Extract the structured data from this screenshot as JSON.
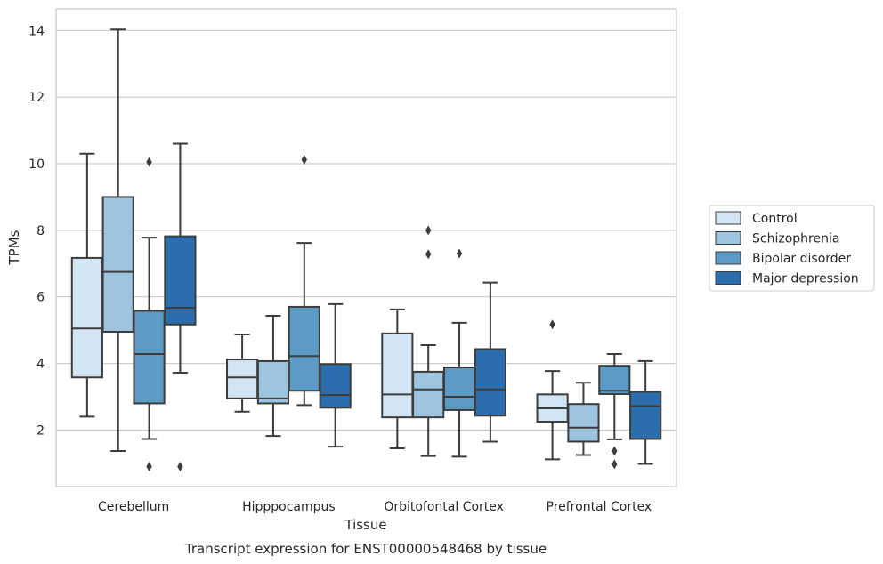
{
  "chart_data": {
    "type": "boxplot",
    "title": "Transcript expression for ENST00000548468 by tissue",
    "xlabel": "Tissue",
    "ylabel": "TPMs",
    "ylim": [
      0.3,
      14.65
    ],
    "yticks": [
      2,
      4,
      6,
      8,
      10,
      12,
      14
    ],
    "grid": true,
    "legend_position": "right-outside",
    "categories": [
      "Cerebellum",
      "Hipppocampus",
      "Orbitofontal Cortex",
      "Prefrontal Cortex"
    ],
    "series": [
      {
        "name": "Control",
        "color": "#d3e4f3",
        "boxes": [
          {
            "whislo": 2.4,
            "q1": 3.58,
            "med": 5.05,
            "q3": 7.17,
            "whishi": 10.3,
            "fliers": []
          },
          {
            "whislo": 2.55,
            "q1": 2.95,
            "med": 3.58,
            "q3": 4.12,
            "whishi": 4.87,
            "fliers": []
          },
          {
            "whislo": 1.45,
            "q1": 2.38,
            "med": 3.07,
            "q3": 4.9,
            "whishi": 5.62,
            "fliers": []
          },
          {
            "whislo": 1.12,
            "q1": 2.25,
            "med": 2.65,
            "q3": 3.07,
            "whishi": 3.77,
            "fliers": [
              5.17
            ]
          }
        ]
      },
      {
        "name": "Schizophrenia",
        "color": "#9cc4df",
        "boxes": [
          {
            "whislo": 1.37,
            "q1": 4.95,
            "med": 6.75,
            "q3": 9.0,
            "whishi": 14.03,
            "fliers": []
          },
          {
            "whislo": 1.82,
            "q1": 2.8,
            "med": 2.95,
            "q3": 4.07,
            "whishi": 5.43,
            "fliers": []
          },
          {
            "whislo": 1.22,
            "q1": 2.38,
            "med": 3.22,
            "q3": 3.75,
            "whishi": 4.55,
            "fliers": [
              7.28,
              8.0
            ]
          },
          {
            "whislo": 1.25,
            "q1": 1.65,
            "med": 2.07,
            "q3": 2.78,
            "whishi": 3.42,
            "fliers": []
          }
        ]
      },
      {
        "name": "Bipolar disorder",
        "color": "#5b9bc6",
        "boxes": [
          {
            "whislo": 1.73,
            "q1": 2.8,
            "med": 4.28,
            "q3": 5.58,
            "whishi": 7.78,
            "fliers": [
              10.05,
              0.9
            ]
          },
          {
            "whislo": 2.75,
            "q1": 3.18,
            "med": 4.22,
            "q3": 5.7,
            "whishi": 7.62,
            "fliers": [
              10.12
            ]
          },
          {
            "whislo": 1.2,
            "q1": 2.6,
            "med": 3.0,
            "q3": 3.88,
            "whishi": 5.22,
            "fliers": [
              7.3
            ]
          },
          {
            "whislo": 1.72,
            "q1": 3.08,
            "med": 3.18,
            "q3": 3.93,
            "whishi": 4.28,
            "fliers": [
              1.37,
              0.97
            ]
          }
        ]
      },
      {
        "name": "Major depression",
        "color": "#2c6ead",
        "boxes": [
          {
            "whislo": 3.72,
            "q1": 5.17,
            "med": 5.67,
            "q3": 7.82,
            "whishi": 10.6,
            "fliers": [
              0.9
            ]
          },
          {
            "whislo": 1.5,
            "q1": 2.67,
            "med": 3.05,
            "q3": 3.98,
            "whishi": 5.78,
            "fliers": []
          },
          {
            "whislo": 1.65,
            "q1": 2.43,
            "med": 3.22,
            "q3": 4.43,
            "whishi": 6.43,
            "fliers": []
          },
          {
            "whislo": 0.98,
            "q1": 1.73,
            "med": 2.72,
            "q3": 3.15,
            "whishi": 4.07,
            "fliers": []
          }
        ]
      }
    ]
  }
}
